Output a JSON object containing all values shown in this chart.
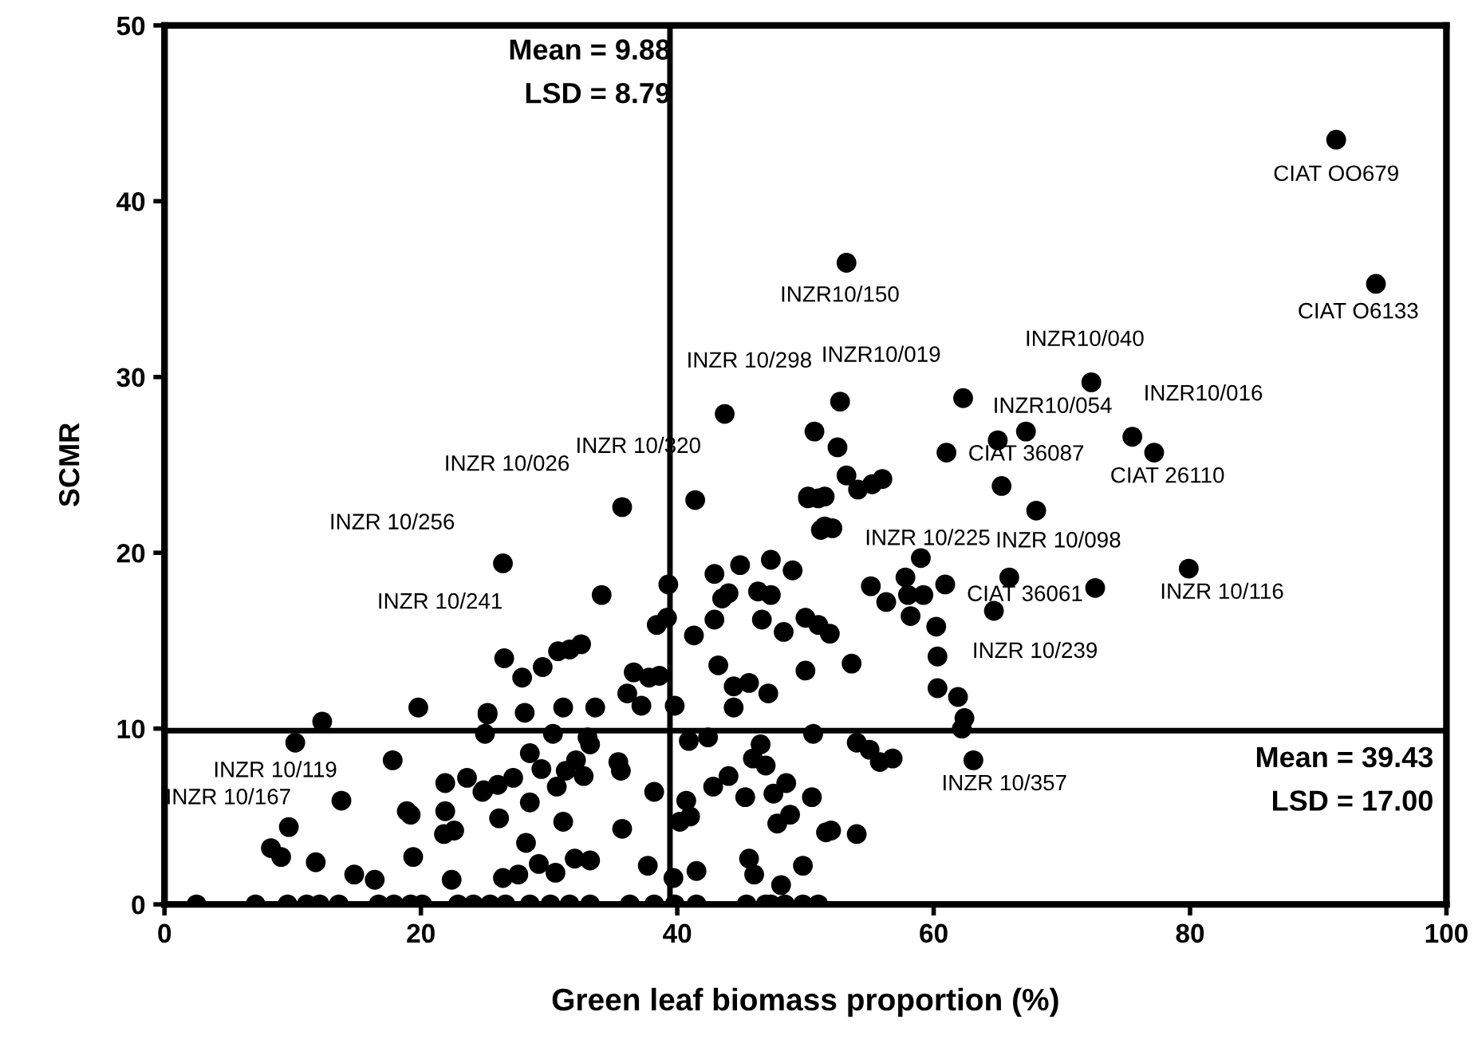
{
  "chart_data": {
    "type": "scatter",
    "xlabel": "Green leaf biomass proportion (%)",
    "ylabel": "SCMR",
    "xlim": [
      0,
      100
    ],
    "xticks": [
      0,
      20,
      40,
      60,
      80,
      100
    ],
    "ylim": [
      0,
      50
    ],
    "yticks": [
      0,
      10,
      20,
      30,
      40,
      50
    ],
    "grid": false,
    "marker": "circle",
    "series": [
      {
        "color": "#000000",
        "x": [
          91.4,
          94.5,
          53.2,
          72.3,
          75.5,
          77.2,
          67.2,
          65.0,
          62.3,
          52.7,
          43.7,
          61.0,
          35.7,
          26.4,
          68.0,
          79.9,
          72.6,
          26.5,
          17.8,
          13.8,
          60.3,
          63.1,
          52.1,
          64.7,
          19.8,
          12.3,
          25.2,
          25.0,
          10.2,
          21.9,
          23.6,
          24.8,
          26.0,
          18.9,
          19.2,
          21.9,
          26.1,
          9.7,
          21.8,
          22.6,
          8.3,
          9.1,
          11.8,
          19.4,
          14.8,
          16.4,
          22.4,
          26.4,
          2.5,
          7.1,
          9.6,
          11.1,
          12.1,
          13.6,
          16.7,
          17.9,
          19.2,
          20.1,
          22.9,
          24.1,
          25.4,
          26.6,
          41.4,
          50.2,
          51.0,
          51.2,
          34.1,
          39.3,
          38.4,
          39.2,
          41.3,
          42.9,
          44.9,
          47.3,
          49.0,
          43.5,
          44.0,
          46.3,
          47.3,
          42.9,
          46.6,
          48.3,
          50.0,
          51.0,
          27.9,
          29.5,
          30.7,
          31.6,
          32.5,
          36.6,
          37.8,
          38.6,
          36.1,
          37.2,
          39.8,
          43.2,
          44.4,
          45.6,
          47.1,
          44.4,
          50.0,
          25.2,
          28.1,
          31.1,
          33.6,
          30.3,
          33.0,
          33.2,
          28.5,
          29.4,
          32.1,
          31.3,
          32.7,
          35.4,
          35.6,
          40.9,
          42.4,
          46.5,
          46.9,
          45.9,
          50.6,
          24.9,
          27.2,
          30.6,
          28.5,
          31.1,
          35.7,
          38.2,
          40.7,
          41.0,
          40.2,
          42.8,
          44.0,
          45.3,
          47.5,
          48.5,
          50.5,
          47.8,
          48.8,
          51.6,
          28.2,
          32.0,
          33.2,
          27.6,
          29.2,
          30.5,
          37.7,
          39.7,
          41.5,
          45.6,
          46.0,
          49.8,
          48.1,
          28.5,
          30.1,
          31.6,
          33.2,
          36.3,
          38.2,
          39.8,
          41.5,
          45.4,
          46.9,
          48.4,
          49.8,
          51.0,
          47.3,
          50.7,
          52.5,
          53.2,
          50.2,
          51.5,
          54.1,
          55.2,
          56.0,
          65.3,
          51.5,
          59.0,
          57.8,
          60.9,
          65.9,
          55.1,
          56.3,
          58.0,
          59.2,
          58.2,
          60.2,
          51.9,
          53.6,
          60.3,
          61.9,
          62.4,
          62.2,
          54.0,
          55.0,
          55.8,
          56.8,
          52.0,
          54.0
        ],
        "values": [
          43.5,
          35.3,
          36.5,
          29.7,
          26.6,
          25.7,
          26.9,
          26.4,
          28.8,
          28.6,
          27.9,
          25.7,
          22.6,
          19.4,
          22.4,
          19.1,
          18.0,
          14.0,
          8.2,
          5.9,
          14.1,
          8.2,
          21.4,
          16.7,
          11.2,
          10.4,
          10.8,
          9.7,
          9.2,
          6.9,
          7.2,
          6.4,
          6.8,
          5.3,
          5.1,
          5.3,
          4.9,
          4.4,
          4.0,
          4.2,
          3.2,
          2.7,
          2.4,
          2.7,
          1.7,
          1.4,
          1.4,
          1.5,
          0,
          0,
          0,
          0,
          0,
          0,
          0,
          0,
          0,
          0,
          0,
          0,
          0,
          0,
          23.0,
          23.1,
          23.1,
          21.3,
          17.6,
          18.2,
          15.9,
          16.3,
          15.3,
          18.8,
          19.3,
          19.6,
          19.0,
          17.4,
          17.7,
          17.8,
          17.6,
          16.2,
          16.2,
          15.5,
          16.3,
          15.9,
          12.9,
          13.5,
          14.4,
          14.5,
          14.8,
          13.2,
          12.9,
          13.0,
          12.0,
          11.3,
          11.3,
          13.6,
          12.4,
          12.6,
          12.0,
          11.2,
          13.3,
          10.9,
          10.9,
          11.2,
          11.2,
          9.7,
          9.5,
          9.1,
          8.6,
          7.7,
          8.2,
          7.6,
          7.3,
          8.1,
          7.6,
          9.3,
          9.5,
          9.1,
          7.9,
          8.3,
          9.7,
          6.5,
          7.2,
          6.7,
          5.8,
          4.7,
          4.3,
          6.4,
          5.9,
          5.0,
          4.7,
          6.7,
          7.3,
          6.1,
          6.3,
          6.9,
          6.1,
          4.6,
          5.1,
          4.1,
          3.5,
          2.6,
          2.5,
          1.7,
          2.3,
          1.8,
          2.2,
          1.5,
          1.9,
          2.6,
          1.7,
          2.2,
          1.1,
          0,
          0,
          0,
          0,
          0,
          0,
          0,
          0,
          0,
          0,
          0,
          0,
          0,
          0,
          26.9,
          26.0,
          24.4,
          23.2,
          23.2,
          23.6,
          23.9,
          24.2,
          23.8,
          21.5,
          19.7,
          18.6,
          18.2,
          18.6,
          18.1,
          17.2,
          17.6,
          17.6,
          16.4,
          15.8,
          15.4,
          13.7,
          12.3,
          11.8,
          10.6,
          10.0,
          9.2,
          8.8,
          8.1,
          8.3,
          4.2,
          4.0
        ]
      }
    ],
    "ref_lines": [
      {
        "axis": "x",
        "value": 39.43,
        "color": "#000000",
        "line_style": "solid"
      },
      {
        "axis": "y",
        "value": 9.88,
        "color": "#000000",
        "line_style": "solid"
      }
    ],
    "annotations": [
      "Mean = 9.88\nLSD = 8.79",
      "Mean = 39.43\nLSD = 17.00",
      {
        "text": "CIAT OO679",
        "x": 91.4,
        "y": 43.5
      },
      {
        "text": "CIAT O6133",
        "x": 94.5,
        "y": 35.3
      },
      {
        "text": "INZR10/150",
        "x": 53.2,
        "y": 36.5
      },
      {
        "text": "INZR10/040",
        "x": 72.3,
        "y": 29.7
      },
      {
        "text": "INZR10/016",
        "x": 75.5,
        "y": 26.6
      },
      {
        "text": "CIAT 26110",
        "x": 77.2,
        "y": 25.7
      },
      {
        "text": "INZR10/054",
        "x": 67.2,
        "y": 26.9
      },
      {
        "text": "INZR10/019",
        "x": 62.3,
        "y": 28.8
      },
      {
        "text": "INZR 10/298",
        "x": 52.7,
        "y": 28.6
      },
      {
        "text": "INZR 10/320",
        "x": 43.7,
        "y": 27.9
      },
      {
        "text": "CIAT 36087",
        "x": 61.0,
        "y": 25.7
      },
      {
        "text": "INZR 10/026",
        "x": 35.7,
        "y": 22.6
      },
      {
        "text": "INZR 10/256",
        "x": 26.4,
        "y": 19.4
      },
      {
        "text": "INZR 10/098",
        "x": 68.0,
        "y": 22.4
      },
      {
        "text": "INZR 10/116",
        "x": 79.9,
        "y": 19.1
      },
      {
        "text": "CIAT 36061",
        "x": 64.7,
        "y": 16.7
      },
      {
        "text": "INZR 10/241",
        "x": 26.5,
        "y": 14.0
      },
      {
        "text": "INZR 10/119",
        "x": 17.8,
        "y": 8.2
      },
      {
        "text": "INZR 10/167",
        "x": 13.8,
        "y": 5.9
      },
      {
        "text": "INZR 10/239",
        "x": 60.3,
        "y": 14.1
      },
      {
        "text": "INZR 10/357",
        "x": 63.1,
        "y": 8.2
      },
      {
        "text": "INZR 10/225",
        "x": 52.1,
        "y": 21.4
      }
    ]
  }
}
